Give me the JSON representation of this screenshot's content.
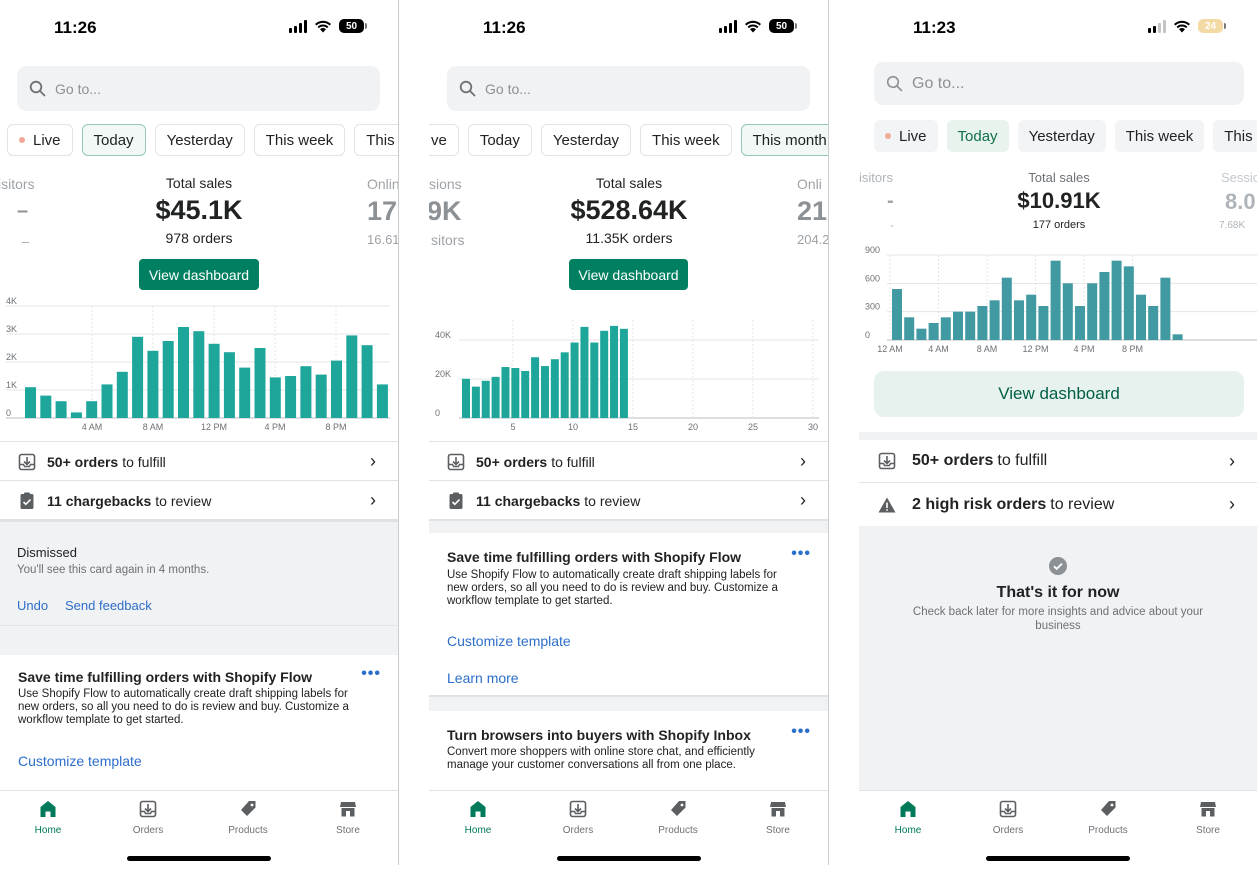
{
  "p1": {
    "time": "11:26",
    "battery": "50",
    "search_placeholder": "Go to...",
    "pills": [
      "Live",
      "Today",
      "Yesterday",
      "This week",
      "This mo"
    ],
    "left_label": "isitors",
    "left_value": "–",
    "left_sub": "–",
    "kpi_label": "Total sales",
    "kpi_value": "$45.1K",
    "kpi_sub": "978 orders",
    "right_label": "Onlin",
    "right_value": "17.",
    "right_sub": "16.61",
    "view_dashboard": "View dashboard",
    "rows": [
      {
        "bold": "50+ orders",
        "text": "to fulfill"
      },
      {
        "bold": "11 chargebacks",
        "text": "to review"
      }
    ],
    "dismissed_title": "Dismissed",
    "dismissed_text": "You'll see this card again in 4 months.",
    "undo": "Undo",
    "send_feedback": "Send feedback",
    "card_title": "Save time fulfilling orders with Shopify Flow",
    "card_body": "Use Shopify Flow to automatically create draft shipping labels for new orders, so all you need to do is review and buy. Customize a workflow template to get started.",
    "card_link": "Customize template",
    "more": "•••"
  },
  "p2": {
    "time": "11:26",
    "battery": "50",
    "search_placeholder": "Go to...",
    "pills": [
      "ve",
      "Today",
      "Yesterday",
      "This week",
      "This month"
    ],
    "left_label": "sions",
    "left_value": "9K",
    "left_sub": "sitors",
    "kpi_label": "Total sales",
    "kpi_value": "$528.64K",
    "kpi_sub": "11.35K orders",
    "right_label": "Onli",
    "right_value": "21",
    "right_sub": "204.2",
    "view_dashboard": "View dashboard",
    "rows": [
      {
        "bold": "50+ orders",
        "text": "to fulfill"
      },
      {
        "bold": "11 chargebacks",
        "text": "to review"
      }
    ],
    "card1_title": "Save time fulfilling orders with Shopify Flow",
    "card1_body": "Use Shopify Flow to automatically create draft shipping labels for new orders, so all you need to do is review and buy. Customize a workflow template to get started.",
    "card1_link": "Customize template",
    "card1_link2": "Learn more",
    "card2_title": "Turn browsers into buyers with Shopify Inbox",
    "card2_body": "Convert more shoppers with online store chat, and efficiently manage your customer conversations all from one place.",
    "more": "•••"
  },
  "p3": {
    "time": "11:23",
    "battery": "24",
    "search_placeholder": "Go to...",
    "pills": [
      "Live",
      "Today",
      "Yesterday",
      "This week",
      "This mor"
    ],
    "left_label": "isitors",
    "left_value": "-",
    "left_sub": "-",
    "kpi_label": "Total sales",
    "kpi_value": "$10.91K",
    "kpi_sub": "177 orders",
    "right_label": "Sessio",
    "right_value": "8.0",
    "right_sub": "7.68K",
    "view_dashboard": "View dashboard",
    "rows": [
      {
        "bold": "50+ orders",
        "text": "to fulfill"
      },
      {
        "bold": "2 high risk orders",
        "text": "to review"
      }
    ],
    "empty_title": "That's it for now",
    "empty_text": "Check back later for more insights and advice about your business"
  },
  "tabs": [
    "Home",
    "Orders",
    "Products",
    "Store"
  ],
  "colors": {
    "accent": "#008060",
    "bar1": "#1ea69a",
    "bar3": "#4199a1",
    "link": "#2c6ecb"
  },
  "chart_data": [
    {
      "type": "bar",
      "title": "",
      "x_ticks": [
        "4 AM",
        "8 AM",
        "12 PM",
        "4 PM",
        "8 PM"
      ],
      "y_ticks": [
        "0",
        "1K",
        "2K",
        "3K",
        "4K"
      ],
      "ylim": [
        0,
        4000
      ],
      "values": [
        1100,
        800,
        600,
        200,
        600,
        1200,
        1650,
        2900,
        2400,
        2750,
        3250,
        3100,
        2650,
        2350,
        1800,
        2500,
        1450,
        1500,
        1850,
        1550,
        2050,
        2950,
        2600,
        1200
      ]
    },
    {
      "type": "bar",
      "title": "",
      "x_ticks": [
        "5",
        "10",
        "15",
        "20",
        "25",
        "30"
      ],
      "y_ticks": [
        "0",
        "20K",
        "40K"
      ],
      "ylim": [
        0,
        50000
      ],
      "values": [
        20000,
        16000,
        19000,
        21000,
        26000,
        25500,
        24000,
        31000,
        26500,
        30000,
        33500,
        38500,
        46500,
        38500,
        44500,
        47000,
        45500
      ]
    },
    {
      "type": "bar",
      "title": "",
      "x_ticks": [
        "12 AM",
        "4 AM",
        "8 AM",
        "12 PM",
        "4 PM",
        "8 PM"
      ],
      "y_ticks": [
        "0",
        "300",
        "600",
        "900"
      ],
      "ylim": [
        0,
        900
      ],
      "values": [
        540,
        240,
        120,
        180,
        240,
        300,
        300,
        360,
        420,
        660,
        420,
        480,
        360,
        840,
        600,
        360,
        600,
        720,
        840,
        780,
        480,
        360,
        660,
        60
      ]
    }
  ]
}
